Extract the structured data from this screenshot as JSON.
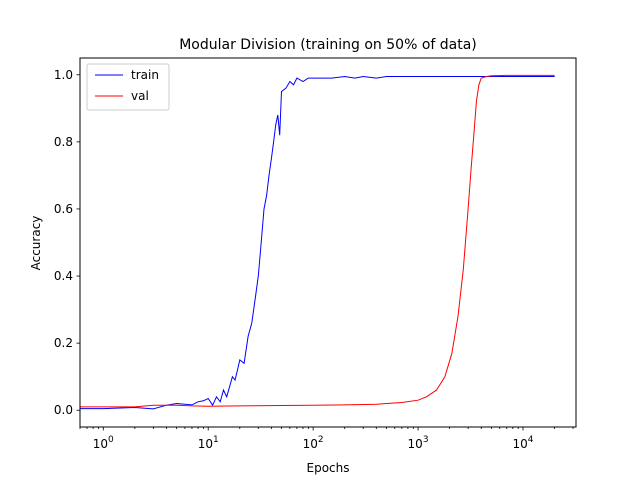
{
  "chart_data": {
    "type": "line",
    "title": "Modular Division (training on 50% of data)",
    "xlabel": "Epochs",
    "ylabel": "Accuracy",
    "xscale": "log",
    "xlim": [
      0.6,
      32000
    ],
    "ylim": [
      -0.05,
      1.05
    ],
    "xtick_base": "10",
    "xticks": [
      {
        "exp": "0",
        "value": 1
      },
      {
        "exp": "1",
        "value": 10
      },
      {
        "exp": "2",
        "value": 100
      },
      {
        "exp": "3",
        "value": 1000
      },
      {
        "exp": "4",
        "value": 10000
      }
    ],
    "yticks": [
      {
        "label": "0.0",
        "value": 0.0
      },
      {
        "label": "0.2",
        "value": 0.2
      },
      {
        "label": "0.4",
        "value": 0.4
      },
      {
        "label": "0.6",
        "value": 0.6
      },
      {
        "label": "0.8",
        "value": 0.8
      },
      {
        "label": "1.0",
        "value": 1.0
      }
    ],
    "legend": "top-left",
    "grid": false,
    "series": [
      {
        "name": "train",
        "color": "#0000ff",
        "x": [
          0.6,
          1,
          2,
          3,
          4,
          5,
          6,
          7,
          8,
          9,
          10,
          11,
          12,
          13,
          14,
          15,
          16,
          17,
          18,
          19,
          20,
          22,
          24,
          26,
          28,
          30,
          32,
          34,
          36,
          38,
          40,
          42,
          44,
          46,
          48,
          50,
          55,
          60,
          65,
          70,
          80,
          90,
          100,
          120,
          150,
          200,
          250,
          300,
          400,
          500,
          700,
          1000,
          1500,
          2000,
          3000,
          5000,
          7000,
          10000,
          15000,
          20000
        ],
        "y": [
          0.005,
          0.005,
          0.008,
          0.004,
          0.015,
          0.02,
          0.018,
          0.016,
          0.025,
          0.028,
          0.035,
          0.015,
          0.04,
          0.025,
          0.06,
          0.04,
          0.07,
          0.1,
          0.09,
          0.12,
          0.15,
          0.14,
          0.22,
          0.26,
          0.33,
          0.4,
          0.5,
          0.6,
          0.64,
          0.7,
          0.75,
          0.8,
          0.85,
          0.88,
          0.82,
          0.95,
          0.96,
          0.98,
          0.97,
          0.99,
          0.98,
          0.99,
          0.99,
          0.99,
          0.99,
          0.995,
          0.99,
          0.995,
          0.99,
          0.995,
          0.995,
          0.995,
          0.995,
          0.995,
          0.995,
          0.995,
          0.995,
          0.995,
          0.995,
          0.995
        ]
      },
      {
        "name": "val",
        "color": "#ff0000",
        "x": [
          0.6,
          1,
          2,
          3,
          5,
          7,
          10,
          20,
          50,
          100,
          200,
          400,
          700,
          1000,
          1200,
          1500,
          1800,
          2100,
          2400,
          2700,
          3000,
          3200,
          3400,
          3600,
          3800,
          4000,
          4500,
          5000,
          7000,
          10000,
          20000
        ],
        "y": [
          0.01,
          0.01,
          0.01,
          0.015,
          0.015,
          0.013,
          0.012,
          0.013,
          0.014,
          0.015,
          0.016,
          0.018,
          0.023,
          0.03,
          0.04,
          0.06,
          0.1,
          0.17,
          0.28,
          0.42,
          0.6,
          0.72,
          0.82,
          0.92,
          0.97,
          0.99,
          0.995,
          0.997,
          0.998,
          0.998,
          0.998
        ]
      }
    ]
  }
}
